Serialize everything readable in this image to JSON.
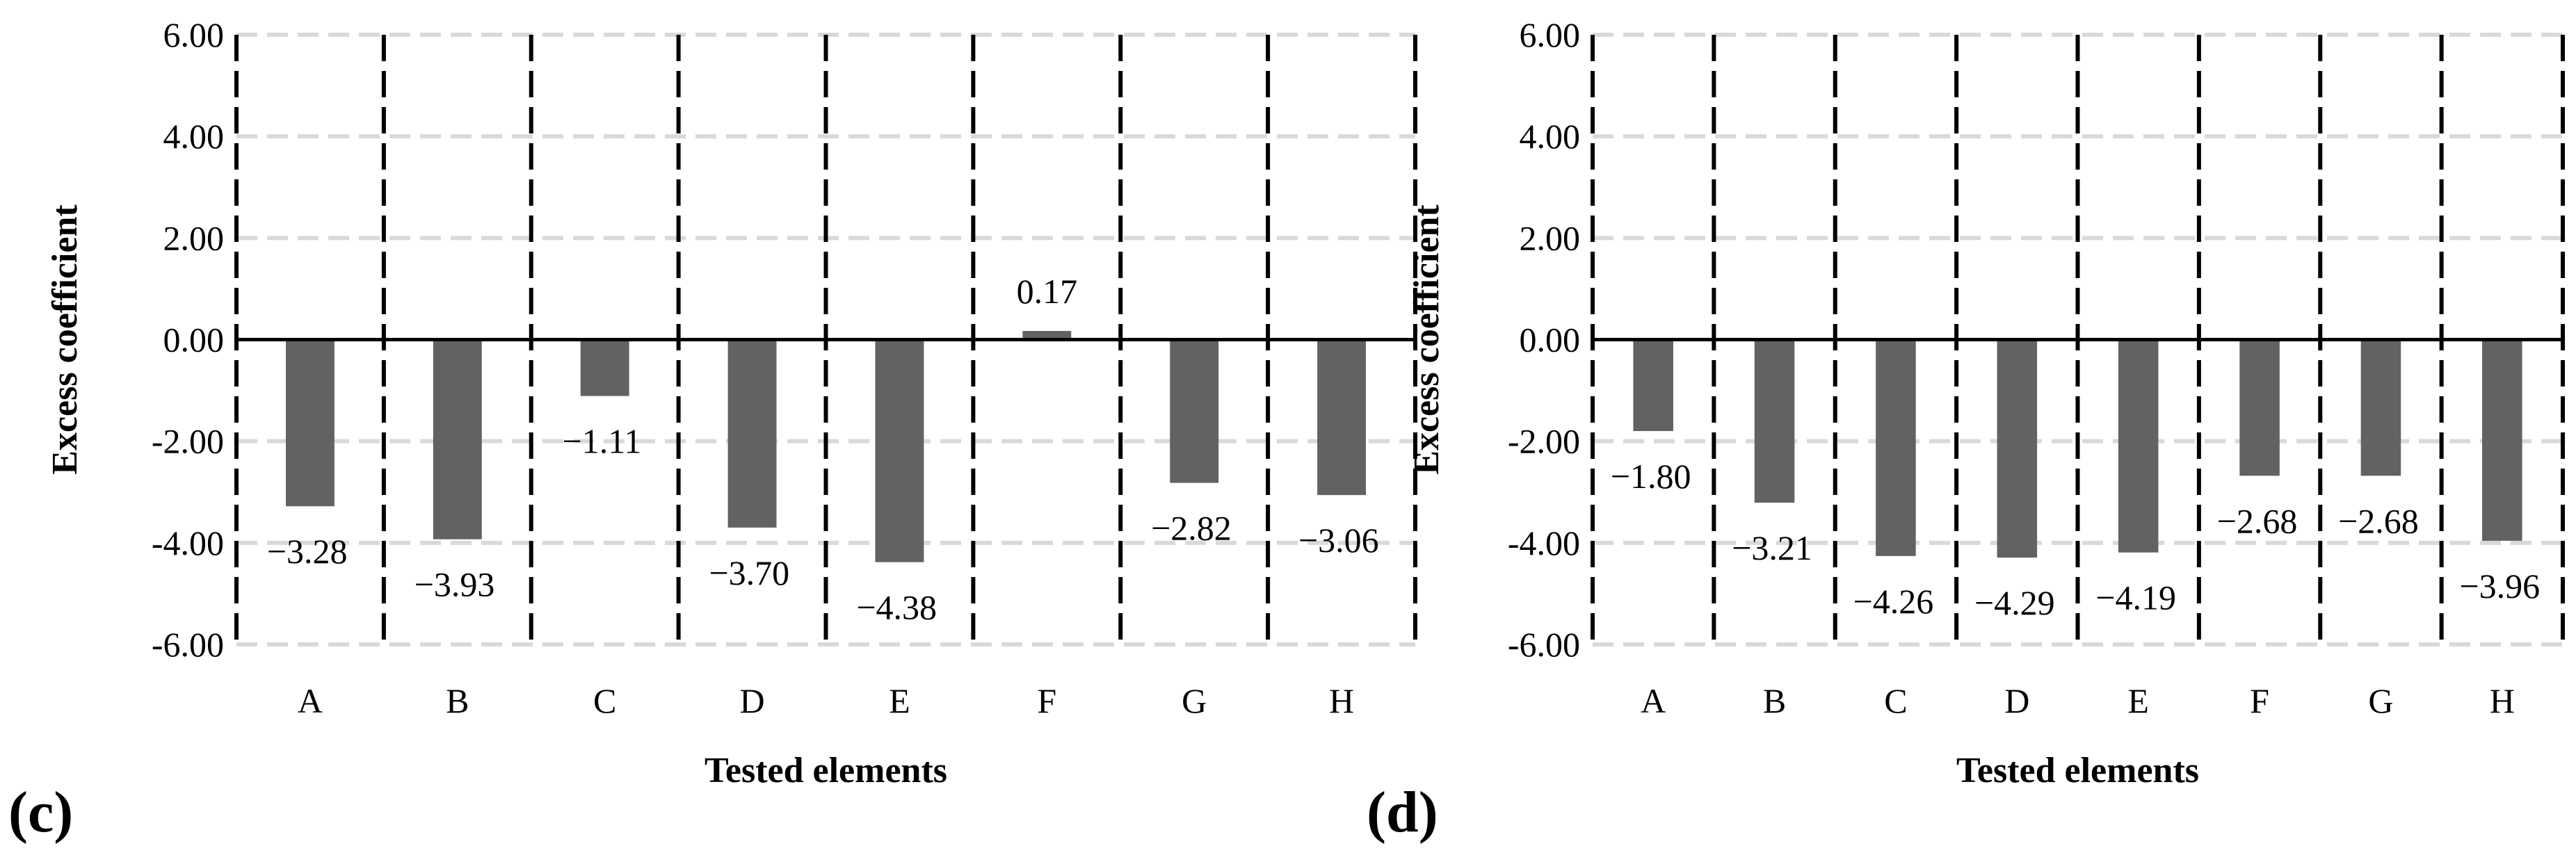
{
  "chart_data": [
    {
      "type": "bar",
      "panel_label": "c",
      "categories": [
        "A",
        "B",
        "C",
        "D",
        "E",
        "F",
        "G",
        "H"
      ],
      "values": [
        -3.28,
        -3.93,
        -1.11,
        -3.7,
        -4.38,
        0.17,
        -2.82,
        -3.06
      ],
      "value_labels": [
        "−3.28",
        "−3.93",
        "−1.11",
        "−3.70",
        "−4.38",
        "0.17",
        "−2.82",
        "−3.06"
      ],
      "xlabel": "Tested elements",
      "ylabel": "Excess coefficient",
      "ylim": [
        -6,
        6
      ],
      "yticks": [
        6,
        4,
        2,
        0,
        -2,
        -4,
        -6
      ],
      "ytick_labels": [
        "6.00",
        "4.00",
        "2.00",
        "0.00",
        "-2.00",
        "-4.00",
        "-6.00"
      ],
      "bar_color": "#626262"
    },
    {
      "type": "bar",
      "panel_label": "d",
      "categories": [
        "A",
        "B",
        "C",
        "D",
        "E",
        "F",
        "G",
        "H"
      ],
      "values": [
        -1.8,
        -3.21,
        -4.26,
        -4.29,
        -4.19,
        -2.68,
        -2.68,
        -3.96
      ],
      "value_labels": [
        "−1.80",
        "−3.21",
        "−4.26",
        "−4.29",
        "−4.19",
        "−2.68",
        "−2.68",
        "−3.96"
      ],
      "xlabel": "Tested elements",
      "ylabel": "Excess coefficient",
      "ylim": [
        -6,
        6
      ],
      "yticks": [
        6,
        4,
        2,
        0,
        -2,
        -4,
        -6
      ],
      "ytick_labels": [
        "6.00",
        "4.00",
        "2.00",
        "0.00",
        "-2.00",
        "-4.00",
        "-6.00"
      ],
      "bar_color": "#626262"
    }
  ]
}
